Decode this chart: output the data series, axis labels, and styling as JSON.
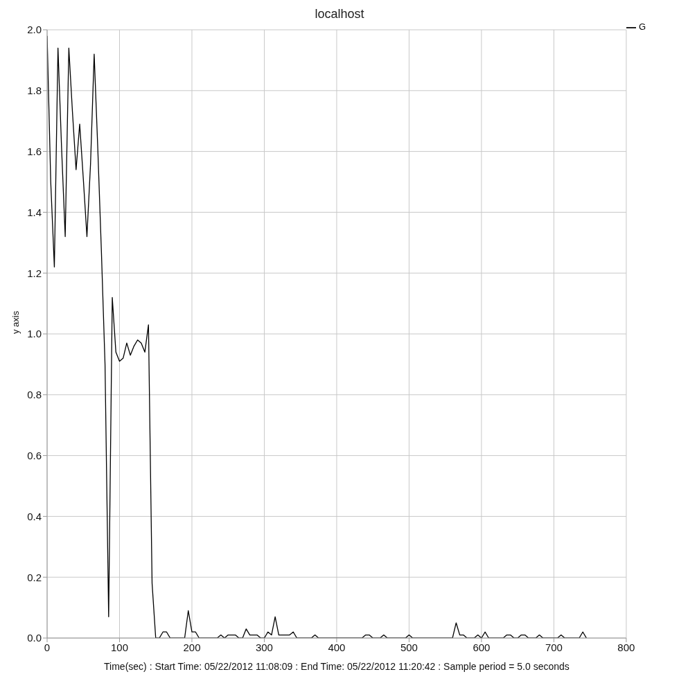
{
  "chart_data": {
    "type": "line",
    "title": "localhost",
    "xlabel": "Time(sec) : Start Time: 05/22/2012 11:08:09  :  End Time: 05/22/2012 11:20:42 : Sample period = 5.0 seconds",
    "ylabel": "y axis",
    "x": [
      0,
      5,
      10,
      15,
      20,
      25,
      30,
      35,
      40,
      45,
      50,
      55,
      60,
      65,
      70,
      75,
      80,
      85,
      90,
      95,
      100,
      105,
      110,
      115,
      120,
      125,
      130,
      135,
      140,
      145,
      150,
      155,
      160,
      165,
      170,
      175,
      180,
      185,
      190,
      195,
      200,
      205,
      210,
      215,
      220,
      225,
      230,
      235,
      240,
      245,
      250,
      255,
      260,
      265,
      270,
      275,
      280,
      285,
      290,
      295,
      300,
      305,
      310,
      315,
      320,
      325,
      330,
      335,
      340,
      345,
      350,
      355,
      360,
      365,
      370,
      375,
      380,
      385,
      390,
      395,
      400,
      405,
      410,
      415,
      420,
      425,
      430,
      435,
      440,
      445,
      450,
      455,
      460,
      465,
      470,
      475,
      480,
      485,
      490,
      495,
      500,
      505,
      510,
      515,
      520,
      525,
      530,
      535,
      540,
      545,
      550,
      555,
      560,
      565,
      570,
      575,
      580,
      585,
      590,
      595,
      600,
      605,
      610,
      615,
      620,
      625,
      630,
      635,
      640,
      645,
      650,
      655,
      660,
      665,
      670,
      675,
      680,
      685,
      690,
      695,
      700,
      705,
      710,
      715,
      720,
      725,
      730,
      735,
      740,
      745
    ],
    "series": [
      {
        "name": "G",
        "color": "#000000",
        "values": [
          1.98,
          1.5,
          1.22,
          1.94,
          1.61,
          1.32,
          1.94,
          1.73,
          1.54,
          1.69,
          1.51,
          1.32,
          1.56,
          1.92,
          1.61,
          1.27,
          0.9,
          0.07,
          1.12,
          0.94,
          0.91,
          0.92,
          0.97,
          0.93,
          0.96,
          0.98,
          0.97,
          0.94,
          1.03,
          0.18,
          0,
          0,
          0.02,
          0.02,
          0,
          0,
          0,
          0,
          0,
          0.09,
          0.02,
          0.02,
          0,
          0,
          0,
          0,
          0,
          0,
          0.01,
          0,
          0.01,
          0.01,
          0.01,
          0,
          0,
          0.03,
          0.01,
          0.01,
          0.01,
          0,
          0,
          0.02,
          0.01,
          0.07,
          0.01,
          0.01,
          0.01,
          0.01,
          0.02,
          0,
          0,
          0,
          0,
          0,
          0.01,
          0,
          0,
          0,
          0,
          0,
          0,
          0,
          0,
          0,
          0,
          0,
          0,
          0,
          0.01,
          0.01,
          0,
          0,
          0,
          0.01,
          0,
          0,
          0,
          0,
          0,
          0,
          0.01,
          0,
          0,
          0,
          0,
          0,
          0,
          0,
          0,
          0,
          0,
          0,
          0,
          0.05,
          0.01,
          0.01,
          0,
          0,
          0,
          0.01,
          0,
          0.02,
          0,
          0,
          0,
          0,
          0,
          0.01,
          0.01,
          0,
          0,
          0.01,
          0.01,
          0,
          0,
          0,
          0.01,
          0,
          0,
          0,
          0,
          0,
          0.01,
          0,
          0,
          0,
          0,
          0,
          0.02,
          0
        ]
      }
    ],
    "xlim": [
      0,
      800
    ],
    "xticks": [
      0,
      100,
      200,
      300,
      400,
      500,
      600,
      700,
      800
    ],
    "ylim": [
      0,
      2.0
    ],
    "yticks": [
      {
        "value": 0,
        "label": "0.0"
      },
      {
        "value": 0.2,
        "label": "0.2"
      },
      {
        "value": 0.4,
        "label": "0.4"
      },
      {
        "value": 0.6,
        "label": "0.6"
      },
      {
        "value": 0.8,
        "label": "0.8"
      },
      {
        "value": 1.0,
        "label": "1.0"
      },
      {
        "value": 1.2,
        "label": "1.2"
      },
      {
        "value": 1.4,
        "label": "1.4"
      },
      {
        "value": 1.6,
        "label": "1.6"
      },
      {
        "value": 1.8,
        "label": "1.8"
      },
      {
        "value": 2.0,
        "label": "2.0"
      }
    ],
    "grid": true,
    "legend": "top right",
    "marker": "none",
    "line_style": "solid"
  }
}
